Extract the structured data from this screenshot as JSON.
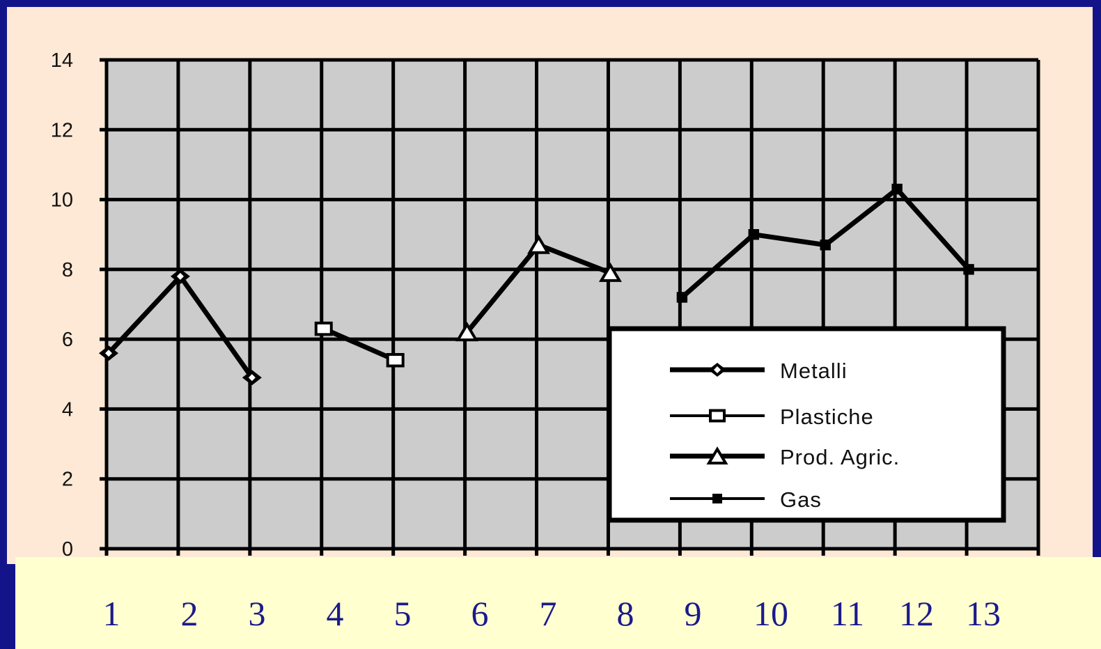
{
  "chart_data": {
    "type": "line",
    "title": "",
    "xlabel": "",
    "ylabel": "",
    "ylim": [
      0,
      14
    ],
    "yticks": [
      "0",
      "2",
      "4",
      "6",
      "8",
      "10",
      "12",
      "14"
    ],
    "x_labels": [
      "1",
      "2",
      "3",
      "4",
      "5",
      "6",
      "7",
      "8",
      "9",
      "10",
      "11",
      "12",
      "13"
    ],
    "grid": true,
    "legend_position": "bottom-right",
    "series": [
      {
        "name": "Metalli",
        "marker": "diamond",
        "points": [
          [
            1,
            5.6
          ],
          [
            2,
            7.8
          ],
          [
            3,
            4.9
          ]
        ]
      },
      {
        "name": "Plastiche",
        "marker": "square",
        "points": [
          [
            4,
            6.3
          ],
          [
            5,
            5.4
          ]
        ]
      },
      {
        "name": "Prod. Agric.",
        "marker": "triangle",
        "points": [
          [
            6,
            6.2
          ],
          [
            7,
            8.7
          ],
          [
            8,
            7.9
          ]
        ]
      },
      {
        "name": "Gas",
        "marker": "filled-square",
        "points": [
          [
            9,
            7.2
          ],
          [
            10,
            9.0
          ],
          [
            11,
            8.7
          ],
          [
            12,
            10.3
          ],
          [
            13,
            8.0
          ]
        ]
      }
    ]
  },
  "colors": {
    "slide_background": "#14148a",
    "chart_background": "#fde9d5",
    "plot_area": "#cccccc",
    "caption_background": "#ffffd0",
    "x_label_text": "#1a1a8c"
  }
}
